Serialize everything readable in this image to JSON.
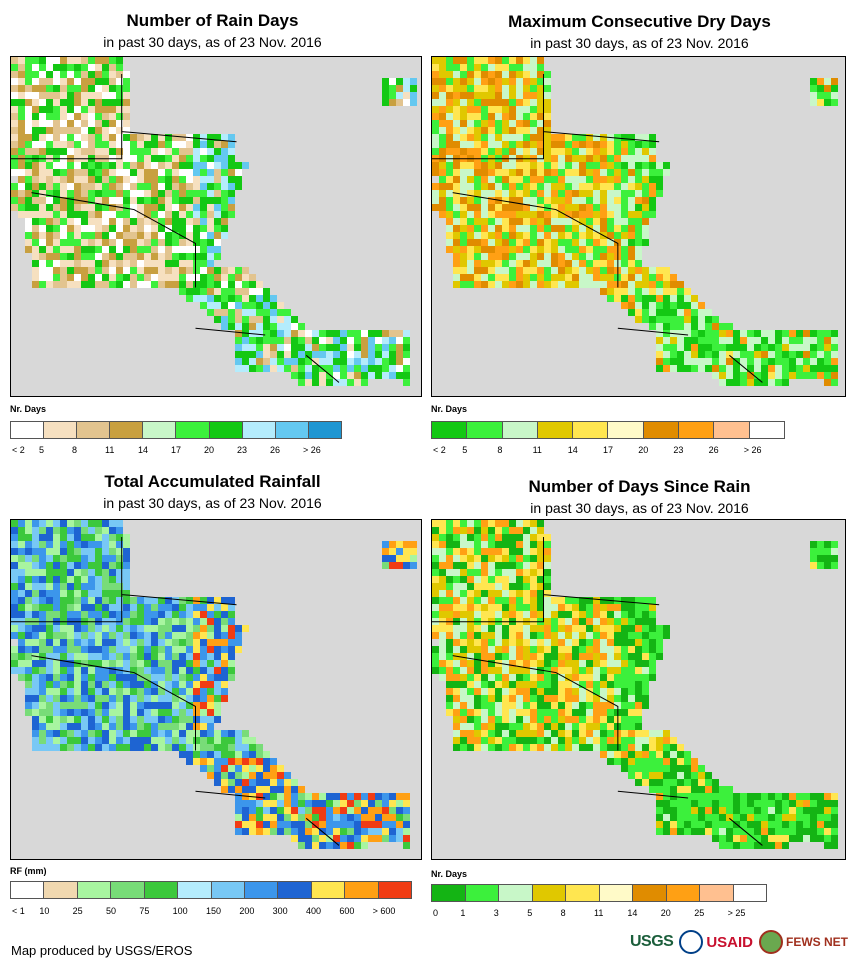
{
  "panels": [
    {
      "title": "Number of Rain Days",
      "subtitle": "in past 30 days, as of 23 Nov. 2016",
      "legend_title": "Nr. Days",
      "legend_colors": [
        "#ffffff",
        "#f6e0c0",
        "#e2c48f",
        "#c8a040",
        "#c8f7c8",
        "#3cf03c",
        "#14c814",
        "#b4ecfc",
        "#64c8f0",
        "#1e96d2"
      ],
      "legend_labels": [
        "< 2",
        "5",
        "8",
        "11",
        "14",
        "17",
        "20",
        "23",
        "26",
        "> 26"
      ],
      "land_palette": [
        "#e2c48f",
        "#f6e0c0",
        "#c8a040",
        "#ffffff",
        "#3cf03c",
        "#14c814"
      ],
      "east_palette": [
        "#3cf03c",
        "#14c814",
        "#b4ecfc",
        "#64c8f0"
      ]
    },
    {
      "title": "Maximum Consecutive Dry Days",
      "subtitle": "in past 30 days, as of 23 Nov. 2016",
      "legend_title": "Nr. Days",
      "legend_colors": [
        "#14c814",
        "#3cf03c",
        "#c8f7c8",
        "#e0c800",
        "#ffe650",
        "#fffac8",
        "#e08c00",
        "#ffa014",
        "#ffc090",
        "#ffffff"
      ],
      "legend_labels": [
        "< 2",
        "5",
        "8",
        "11",
        "14",
        "17",
        "20",
        "23",
        "26",
        "> 26"
      ],
      "land_palette": [
        "#3cf03c",
        "#c8f7c8",
        "#e0c800",
        "#ffe650",
        "#e08c00",
        "#ffa014"
      ],
      "east_palette": [
        "#14c814",
        "#3cf03c",
        "#c8f7c8"
      ]
    },
    {
      "title": "Total Accumulated Rainfall",
      "subtitle": "in past 30 days, as of 23 Nov. 2016",
      "legend_title": "RF (mm)",
      "legend_colors": [
        "#ffffff",
        "#f0d8b0",
        "#a8f5a0",
        "#78dc78",
        "#3cc83c",
        "#b4ecfc",
        "#78c8f5",
        "#3c96eb",
        "#1e64d2",
        "#ffe650",
        "#ffa014",
        "#f03c14"
      ],
      "legend_labels": [
        "< 1",
        "10",
        "25",
        "50",
        "75",
        "100",
        "150",
        "200",
        "300",
        "400",
        "600",
        "> 600"
      ],
      "land_palette": [
        "#3c96eb",
        "#78c8f5",
        "#78dc78",
        "#a8f5a0",
        "#1e64d2",
        "#3cc83c"
      ],
      "east_palette": [
        "#1e64d2",
        "#3c96eb",
        "#ffe650",
        "#ffa014",
        "#f03c14"
      ]
    },
    {
      "title": "Number of Days Since Rain",
      "subtitle": "in past 30 days, as of 23 Nov. 2016",
      "legend_title": "Nr. Days",
      "legend_colors": [
        "#14b414",
        "#3cf03c",
        "#c8f7c8",
        "#e0c800",
        "#ffe650",
        "#fffac8",
        "#e08c00",
        "#ffa014",
        "#ffc090",
        "#ffffff"
      ],
      "legend_labels": [
        "0",
        "1",
        "3",
        "5",
        "8",
        "11",
        "14",
        "20",
        "25",
        "> 25"
      ],
      "land_palette": [
        "#ffe650",
        "#e0c800",
        "#14b414",
        "#3cf03c",
        "#ffa014",
        "#c8f7c8"
      ],
      "east_palette": [
        "#14b414",
        "#3cf03c"
      ]
    }
  ],
  "footer": {
    "credit": "Map produced by USGS/EROS",
    "logos": [
      "USGS",
      "USAID",
      "FEWS NET"
    ]
  }
}
